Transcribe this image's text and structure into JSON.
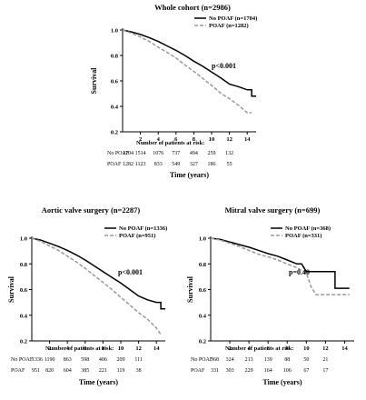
{
  "chart_data": [
    {
      "type": "line",
      "title": "Whole cohort (n=2986)",
      "xlabel": "Time (years)",
      "ylabel": "Survival",
      "xlim": [
        0,
        15
      ],
      "ylim": [
        0.2,
        1.0
      ],
      "xticks": [
        "2",
        "4",
        "6",
        "8",
        "10",
        "12",
        "14"
      ],
      "yticks": [
        "0.2",
        "0.4",
        "0.6",
        "0.8",
        "1.0"
      ],
      "legend_position": "top-right",
      "pvalue": "p<0.001",
      "series": [
        {
          "name": "No POAF (n=1704)",
          "style": "solid",
          "color": "#000000",
          "x": [
            0,
            1,
            2,
            3,
            4,
            5,
            6,
            7,
            8,
            9,
            10,
            11,
            12,
            13,
            14,
            14.5,
            14.5,
            15
          ],
          "y": [
            1.0,
            0.985,
            0.965,
            0.94,
            0.91,
            0.875,
            0.84,
            0.8,
            0.755,
            0.715,
            0.67,
            0.625,
            0.575,
            0.555,
            0.53,
            0.53,
            0.48,
            0.48
          ]
        },
        {
          "name": "POAF (n=1282)",
          "style": "dashed",
          "color": "#999999",
          "x": [
            0,
            1,
            2,
            3,
            4,
            5,
            6,
            7,
            8,
            9,
            10,
            11,
            12,
            13,
            14,
            14.5
          ],
          "y": [
            1.0,
            0.975,
            0.945,
            0.91,
            0.865,
            0.825,
            0.78,
            0.725,
            0.675,
            0.62,
            0.565,
            0.505,
            0.46,
            0.41,
            0.35,
            0.35
          ]
        }
      ],
      "risk_table": {
        "title": "Number of patients at risk:",
        "rows": [
          {
            "label": "No POAF",
            "values": [
              "1704",
              "1514",
              "1076",
              "737",
              "494",
              "259",
              "132"
            ]
          },
          {
            "label": "POAF",
            "values": [
              "1282",
              "1123",
              "833",
              "549",
              "327",
              "186",
              "55"
            ]
          }
        ]
      }
    },
    {
      "type": "line",
      "title": "Aortic valve surgery (n=2287)",
      "xlabel": "Time (years)",
      "ylabel": "Survival",
      "xlim": [
        0,
        15
      ],
      "ylim": [
        0.2,
        1.0
      ],
      "xticks": [
        "2",
        "4",
        "6",
        "8",
        "10",
        "12",
        "14"
      ],
      "yticks": [
        "0.2",
        "0.4",
        "0.6",
        "0.8",
        "1.0"
      ],
      "legend_position": "top-right",
      "pvalue": "p<0.001",
      "series": [
        {
          "name": "No POAF (n=1336)",
          "style": "solid",
          "color": "#000000",
          "x": [
            0,
            1,
            2,
            3,
            4,
            5,
            6,
            7,
            8,
            9,
            10,
            11,
            12,
            13,
            14,
            14.5,
            14.5,
            15
          ],
          "y": [
            1.0,
            0.985,
            0.96,
            0.935,
            0.905,
            0.87,
            0.83,
            0.785,
            0.74,
            0.695,
            0.65,
            0.6,
            0.55,
            0.52,
            0.5,
            0.5,
            0.45,
            0.45
          ]
        },
        {
          "name": "POAF (n=951)",
          "style": "dashed",
          "color": "#999999",
          "x": [
            0,
            1,
            2,
            3,
            4,
            5,
            6,
            7,
            8,
            9,
            10,
            11,
            12,
            13,
            14,
            14.5
          ],
          "y": [
            1.0,
            0.975,
            0.94,
            0.905,
            0.86,
            0.815,
            0.765,
            0.71,
            0.655,
            0.6,
            0.54,
            0.48,
            0.42,
            0.37,
            0.3,
            0.25
          ]
        }
      ],
      "risk_table": {
        "title": "Number of patients at risk:",
        "rows": [
          {
            "label": "No POAF",
            "values": [
              "1336",
              "1190",
              "863",
              "598",
              "406",
              "209",
              "111"
            ]
          },
          {
            "label": "POAF",
            "values": [
              "951",
              "820",
              "604",
              "385",
              "221",
              "119",
              "38"
            ]
          }
        ]
      }
    },
    {
      "type": "line",
      "title": "Mitral valve surgery (n=699)",
      "xlabel": "Time (years)",
      "ylabel": "Survival",
      "xlim": [
        0,
        15
      ],
      "ylim": [
        0.2,
        1.0
      ],
      "xticks": [
        "2",
        "4",
        "6",
        "8",
        "10",
        "12",
        "14"
      ],
      "yticks": [
        "0.2",
        "0.4",
        "0.6",
        "0.8",
        "1.0"
      ],
      "legend_position": "top-right",
      "pvalue": "p=0.40",
      "series": [
        {
          "name": "No POAF (n=368)",
          "style": "solid",
          "color": "#000000",
          "x": [
            0,
            1,
            2,
            3,
            4,
            5,
            6,
            7,
            8,
            9,
            9.5,
            10,
            11,
            12,
            13,
            13,
            14.5
          ],
          "y": [
            1.0,
            0.99,
            0.97,
            0.95,
            0.93,
            0.905,
            0.88,
            0.86,
            0.83,
            0.8,
            0.8,
            0.74,
            0.74,
            0.74,
            0.74,
            0.61,
            0.61
          ]
        },
        {
          "name": "POAF (n=331)",
          "style": "dashed",
          "color": "#999999",
          "x": [
            0,
            1,
            2,
            3,
            4,
            5,
            6,
            7,
            8,
            9,
            10,
            10.5,
            11,
            12,
            13,
            14.5
          ],
          "y": [
            1.0,
            0.985,
            0.96,
            0.935,
            0.905,
            0.875,
            0.855,
            0.83,
            0.8,
            0.77,
            0.73,
            0.62,
            0.56,
            0.56,
            0.56,
            0.56
          ]
        }
      ],
      "risk_table": {
        "title": "Number of patients at risk:",
        "rows": [
          {
            "label": "No POAF",
            "values": [
              "368",
              "324",
              "213",
              "139",
              "88",
              "50",
              "21"
            ]
          },
          {
            "label": "POAF",
            "values": [
              "331",
              "303",
              "229",
              "164",
              "106",
              "67",
              "17"
            ]
          }
        ]
      }
    }
  ]
}
